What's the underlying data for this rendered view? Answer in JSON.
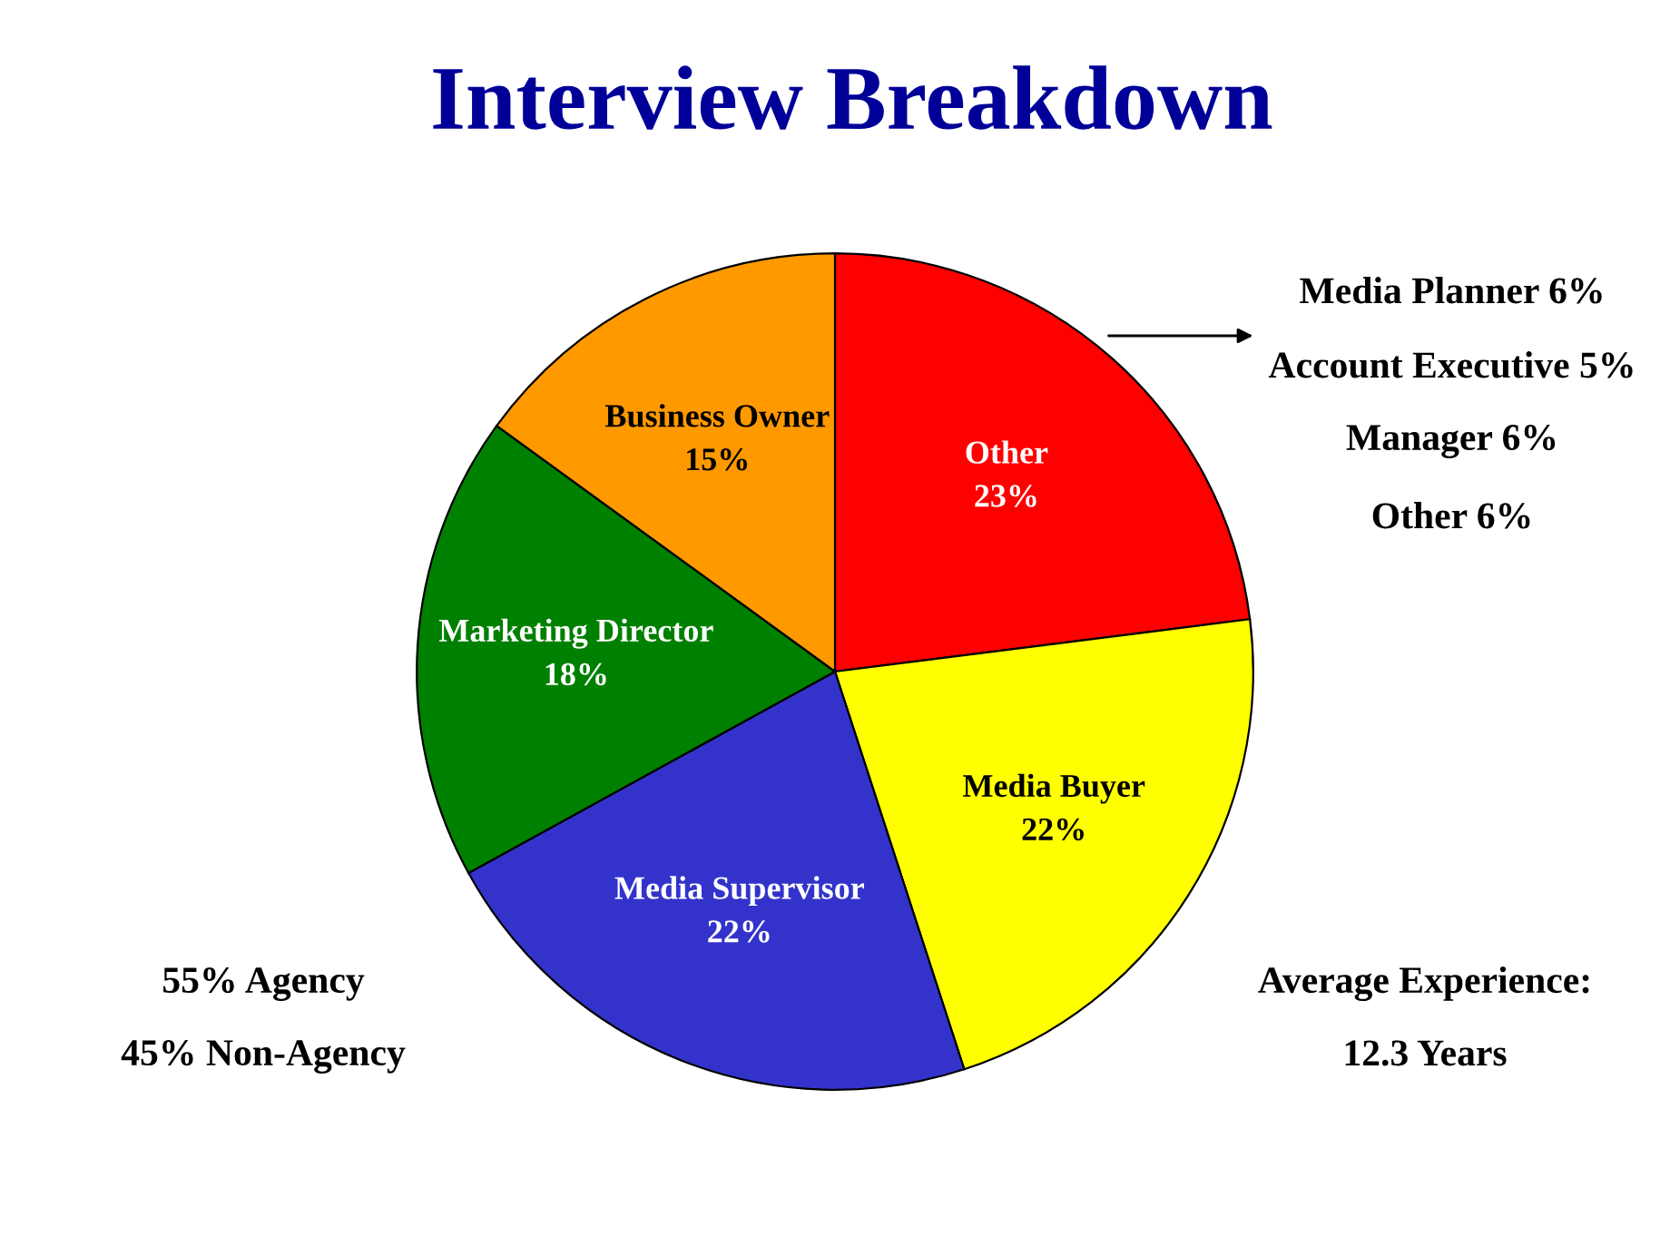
{
  "chart_data": {
    "type": "pie",
    "title": "Interview Breakdown",
    "categories": [
      "Other",
      "Media Buyer",
      "Media Supervisor",
      "Marketing Director",
      "Business Owner"
    ],
    "values": [
      23,
      22,
      22,
      18,
      15
    ],
    "value_labels": [
      "23%",
      "22%",
      "22%",
      "18%",
      "15%"
    ],
    "colors": [
      "#ff0000",
      "#ffff00",
      "#3333cc",
      "#008000",
      "#ff9900"
    ],
    "annotations": [
      "Media Planner 6%",
      "Account Executive 5%",
      "Manager 6%",
      "Other 6%",
      "55% Agency",
      "45% Non-Agency",
      "Average Experience:",
      "12.3 Years"
    ]
  }
}
